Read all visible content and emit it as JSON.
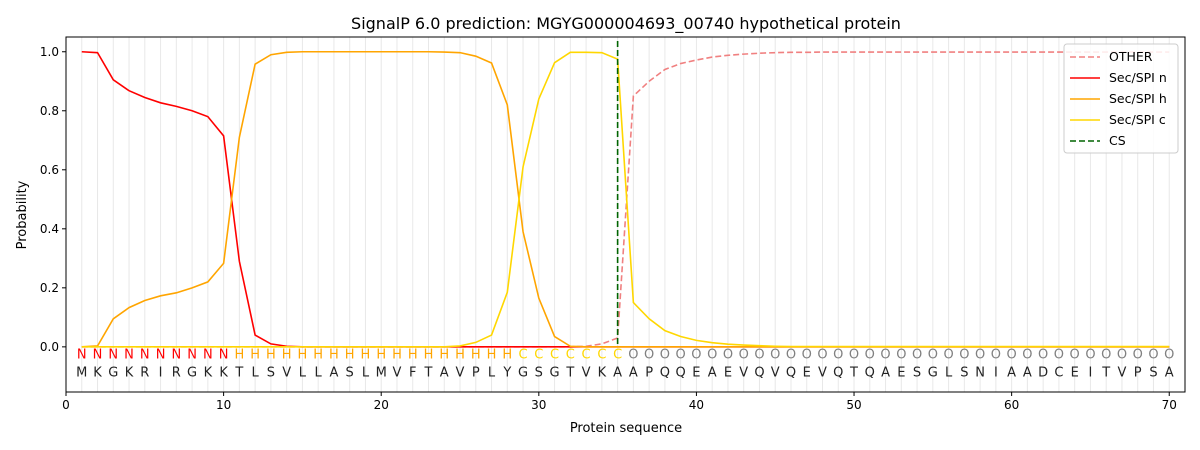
{
  "chart_data": {
    "type": "line",
    "title": "SignalP 6.0 prediction: MGYG000004693_00740 hypothetical protein",
    "xlabel": "Protein sequence",
    "ylabel": "Probability",
    "xlim": [
      0,
      71
    ],
    "ylim": [
      -0.153,
      1.05
    ],
    "xticks": [
      0,
      10,
      20,
      30,
      40,
      50,
      60,
      70
    ],
    "yticks": [
      0.0,
      0.2,
      0.4,
      0.6,
      0.8,
      1.0
    ],
    "ytick_labels": [
      "0.0",
      "0.2",
      "0.4",
      "0.6",
      "0.8",
      "1.0"
    ],
    "legend_position": "top-right",
    "sequence": "MKGKRIRGKKTLSVLLASLMVFTAVPLYGSGTVKAAPQQEAEVQVQEVQTQAESGLSNIAADCEITVPSA",
    "labels": "NNNNNNNNNNHHHHHHHHHHHHHHHHHHCCCCCCCOOOOOOOOOOOOOOOOOOOOOOOOOOOOOOOOOOO",
    "label_colors": {
      "N": "#ff0000",
      "H": "#ffa500",
      "C": "#ffd700",
      "O": "#808080"
    },
    "cs_position": 35,
    "series": [
      {
        "name": "OTHER",
        "color": "#f08080",
        "dash": true,
        "values": [
          0,
          0,
          0,
          0,
          0,
          0,
          0,
          0,
          0,
          0,
          0,
          0,
          0,
          0,
          0,
          0,
          0,
          0,
          0,
          0,
          0,
          0,
          0,
          0,
          0,
          0,
          0,
          0,
          0,
          0,
          0,
          0,
          0.002,
          0.01,
          0.03,
          0.85,
          0.9,
          0.94,
          0.96,
          0.972,
          0.982,
          0.988,
          0.992,
          0.995,
          0.997,
          0.998,
          0.998,
          0.999,
          0.999,
          0.999,
          0.999,
          0.999,
          0.999,
          0.999,
          0.999,
          0.999,
          0.999,
          0.999,
          0.999,
          0.999,
          0.999,
          0.999,
          0.999,
          0.999,
          0.999,
          0.999,
          0.999,
          0.999,
          0.999,
          0.999
        ]
      },
      {
        "name": "Sec/SPI n",
        "color": "#ff0000",
        "values": [
          1.0,
          0.997,
          0.905,
          0.868,
          0.845,
          0.827,
          0.815,
          0.8,
          0.78,
          0.715,
          0.29,
          0.04,
          0.01,
          0.002,
          0,
          0,
          0,
          0,
          0,
          0,
          0,
          0,
          0,
          0,
          0,
          0,
          0,
          0,
          0,
          0,
          0,
          0,
          0,
          0,
          0,
          0,
          0,
          0,
          0,
          0,
          0,
          0,
          0,
          0,
          0,
          0,
          0,
          0,
          0,
          0,
          0,
          0,
          0,
          0,
          0,
          0,
          0,
          0,
          0,
          0,
          0,
          0,
          0,
          0,
          0,
          0,
          0,
          0,
          0,
          0
        ]
      },
      {
        "name": "Sec/SPI h",
        "color": "#ffa500",
        "values": [
          0,
          0.003,
          0.095,
          0.133,
          0.157,
          0.173,
          0.183,
          0.2,
          0.22,
          0.283,
          0.71,
          0.958,
          0.99,
          0.998,
          1,
          1,
          1,
          1,
          1,
          1,
          1,
          1,
          1,
          0.999,
          0.997,
          0.985,
          0.962,
          0.82,
          0.39,
          0.165,
          0.035,
          0.002,
          0,
          0,
          0,
          0,
          0,
          0,
          0,
          0,
          0,
          0,
          0,
          0,
          0,
          0,
          0,
          0,
          0,
          0,
          0,
          0,
          0,
          0,
          0,
          0,
          0,
          0,
          0,
          0,
          0,
          0,
          0,
          0,
          0,
          0,
          0,
          0,
          0,
          0
        ]
      },
      {
        "name": "Sec/SPI c",
        "color": "#ffd700",
        "values": [
          0,
          0,
          0,
          0,
          0,
          0,
          0,
          0,
          0,
          0,
          0,
          0,
          0,
          0,
          0,
          0,
          0,
          0,
          0,
          0,
          0,
          0,
          0,
          0,
          0.003,
          0.015,
          0.04,
          0.185,
          0.61,
          0.84,
          0.963,
          0.998,
          0.998,
          0.997,
          0.975,
          0.15,
          0.095,
          0.055,
          0.035,
          0.022,
          0.014,
          0.009,
          0.006,
          0.004,
          0.002,
          0.001,
          0.001,
          0.001,
          0.001,
          0.001,
          0.001,
          0.001,
          0.001,
          0.001,
          0.001,
          0.001,
          0.001,
          0.001,
          0.001,
          0.001,
          0.001,
          0.001,
          0.001,
          0.001,
          0.001,
          0.001,
          0.001,
          0.001,
          0.001,
          0.001
        ]
      },
      {
        "name": "CS",
        "color": "#006400",
        "dash": true,
        "values": []
      }
    ]
  }
}
